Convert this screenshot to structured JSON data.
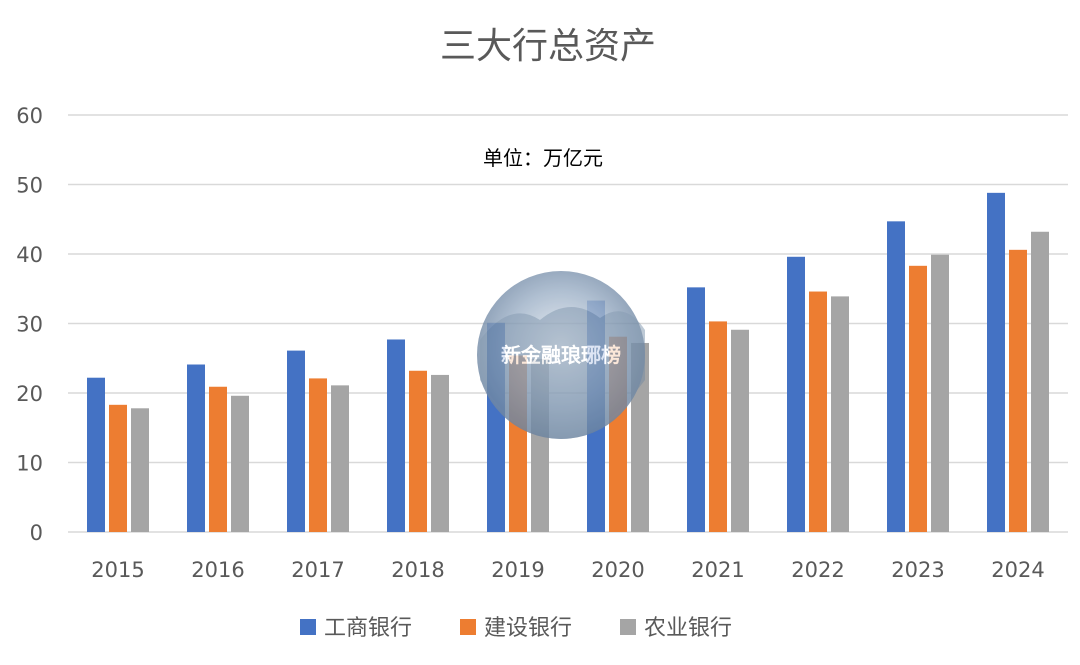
{
  "chart_data": {
    "type": "bar",
    "title": "三大行总资产",
    "annotation": "单位：万亿元",
    "watermark_text": "新金融琅琊榜",
    "categories": [
      "2015",
      "2016",
      "2017",
      "2018",
      "2019",
      "2020",
      "2021",
      "2022",
      "2023",
      "2024"
    ],
    "series": [
      {
        "name": "工商银行",
        "color": "#4472C4",
        "values": [
          22.2,
          24.1,
          26.1,
          27.7,
          30.1,
          33.3,
          35.2,
          39.6,
          44.7,
          48.8
        ]
      },
      {
        "name": "建设银行",
        "color": "#ED7D31",
        "values": [
          18.3,
          20.9,
          22.1,
          23.2,
          25.4,
          28.1,
          30.3,
          34.6,
          38.3,
          40.6
        ]
      },
      {
        "name": "农业银行",
        "color": "#A5A5A5",
        "values": [
          17.8,
          19.6,
          21.1,
          22.6,
          24.9,
          27.2,
          29.1,
          33.9,
          39.9,
          43.2
        ]
      }
    ],
    "ylim": [
      0,
      60
    ],
    "yticks": [
      0,
      10,
      20,
      30,
      40,
      50,
      60
    ],
    "xlabel": "",
    "ylabel": "",
    "grid": true,
    "legend_position": "bottom"
  }
}
